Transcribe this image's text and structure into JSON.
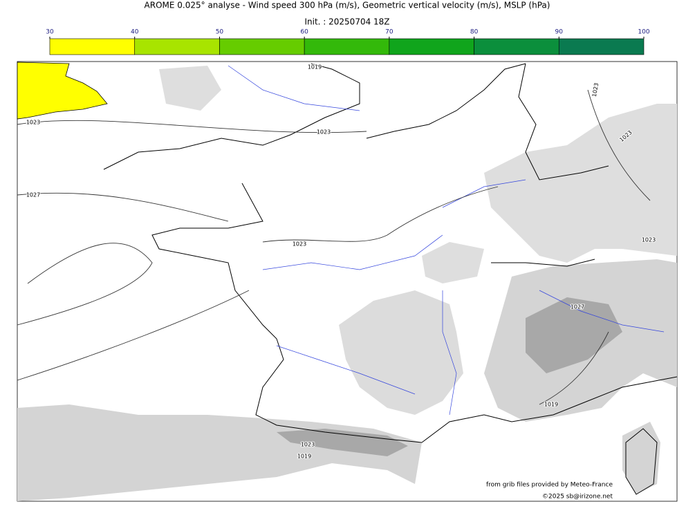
{
  "title": "AROME 0.025° analyse - Wind speed 300 hPa (m/s), Geometric vertical velocity (m/s), MSLP (hPa)",
  "subtitle": "Init. : 20250704 18Z",
  "colorbar": {
    "ticks": [
      30,
      40,
      50,
      60,
      70,
      80,
      90,
      100
    ],
    "colors": [
      "#ffff00",
      "#a8e400",
      "#66cc00",
      "#33b90a",
      "#10a51c",
      "#0b8f3c",
      "#0a7a50"
    ]
  },
  "isobar_labels": [
    "1019",
    "1023",
    "1023",
    "1027",
    "1023",
    "1023",
    "1023",
    "1023",
    "1027",
    "1019",
    "1023",
    "1019"
  ],
  "credits": [
    "from grib files provided by Meteo-France",
    "©2025 sb@irizone.net"
  ]
}
